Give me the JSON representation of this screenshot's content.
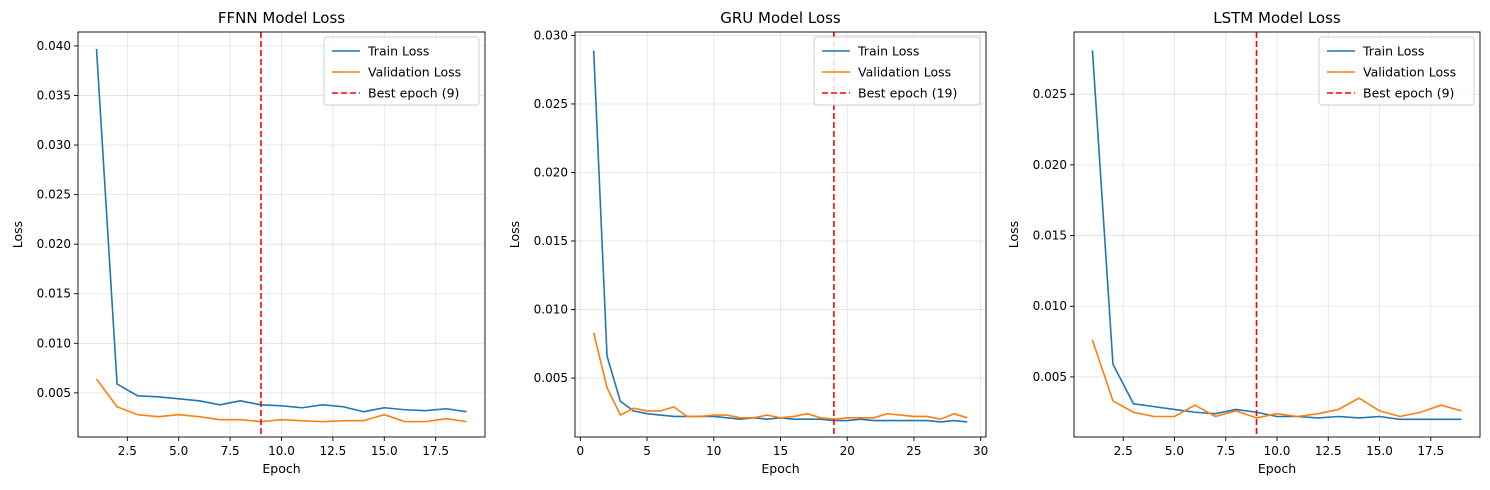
{
  "chart_data": [
    {
      "type": "line",
      "title": "FFNN Model Loss",
      "xlabel": "Epoch",
      "ylabel": "Loss",
      "xlim": [
        0.1,
        19.9
      ],
      "ylim": [
        0.00055,
        0.0414
      ],
      "xticks": [
        2.5,
        5.0,
        7.5,
        10.0,
        12.5,
        15.0,
        17.5
      ],
      "xtick_labels": [
        "2.5",
        "5.0",
        "7.5",
        "10.0",
        "12.5",
        "15.0",
        "17.5"
      ],
      "yticks": [
        0.005,
        0.01,
        0.015,
        0.02,
        0.025,
        0.03,
        0.035,
        0.04
      ],
      "ytick_labels": [
        "0.005",
        "0.010",
        "0.015",
        "0.020",
        "0.025",
        "0.030",
        "0.035",
        "0.040"
      ],
      "grid": true,
      "legend_position": "top-right",
      "x": [
        1,
        2,
        3,
        4,
        5,
        6,
        7,
        8,
        9,
        10,
        11,
        12,
        13,
        14,
        15,
        16,
        17,
        18,
        19
      ],
      "series": [
        {
          "name": "Train Loss",
          "color": "#1f77b4",
          "values": [
            0.0397,
            0.0059,
            0.0047,
            0.0046,
            0.0044,
            0.0042,
            0.0038,
            0.0042,
            0.0038,
            0.0037,
            0.0035,
            0.0038,
            0.0036,
            0.0031,
            0.0035,
            0.0033,
            0.0032,
            0.0034,
            0.0031
          ]
        },
        {
          "name": "Validation Loss",
          "color": "#ff7f0e",
          "values": [
            0.0064,
            0.0036,
            0.0028,
            0.0026,
            0.0028,
            0.0026,
            0.0023,
            0.0023,
            0.0021,
            0.0023,
            0.0022,
            0.0021,
            0.0022,
            0.0022,
            0.0028,
            0.0021,
            0.0021,
            0.0024,
            0.0021
          ]
        }
      ],
      "vline": {
        "x": 9,
        "label": "Best epoch (9)",
        "color": "#ff0000"
      }
    },
    {
      "type": "line",
      "title": "GRU Model Loss",
      "xlabel": "Epoch",
      "ylabel": "Loss",
      "xlim": [
        -0.4,
        30.4
      ],
      "ylim": [
        0.0007,
        0.03025
      ],
      "xticks": [
        0,
        5,
        10,
        15,
        20,
        25,
        30
      ],
      "xtick_labels": [
        "0",
        "5",
        "10",
        "15",
        "20",
        "25",
        "30"
      ],
      "yticks": [
        0.005,
        0.01,
        0.015,
        0.02,
        0.025,
        0.03
      ],
      "ytick_labels": [
        "0.005",
        "0.010",
        "0.015",
        "0.020",
        "0.025",
        "0.030"
      ],
      "grid": true,
      "legend_position": "top-right",
      "x": [
        1,
        2,
        3,
        4,
        5,
        6,
        7,
        8,
        9,
        10,
        11,
        12,
        13,
        14,
        15,
        16,
        17,
        18,
        19,
        20,
        21,
        22,
        23,
        24,
        25,
        26,
        27,
        28,
        29
      ],
      "series": [
        {
          "name": "Train Loss",
          "color": "#1f77b4",
          "values": [
            0.0289,
            0.0066,
            0.0033,
            0.0026,
            0.0024,
            0.0023,
            0.0022,
            0.0022,
            0.0022,
            0.0022,
            0.0021,
            0.002,
            0.0021,
            0.002,
            0.0021,
            0.002,
            0.002,
            0.002,
            0.0019,
            0.0019,
            0.002,
            0.0019,
            0.0019,
            0.0019,
            0.0019,
            0.0019,
            0.0018,
            0.0019,
            0.0018
          ]
        },
        {
          "name": "Validation Loss",
          "color": "#ff7f0e",
          "values": [
            0.0083,
            0.0043,
            0.0023,
            0.0028,
            0.0026,
            0.0026,
            0.0029,
            0.0022,
            0.0022,
            0.0023,
            0.0023,
            0.0021,
            0.0021,
            0.0023,
            0.0021,
            0.0022,
            0.0024,
            0.0021,
            0.002,
            0.0021,
            0.0021,
            0.0021,
            0.0024,
            0.0023,
            0.0022,
            0.0022,
            0.002,
            0.0024,
            0.0021
          ]
        }
      ],
      "vline": {
        "x": 19,
        "label": "Best epoch (19)",
        "color": "#ff0000"
      }
    },
    {
      "type": "line",
      "title": "LSTM Model Loss",
      "xlabel": "Epoch",
      "ylabel": "Loss",
      "xlim": [
        0.1,
        19.9
      ],
      "ylim": [
        0.00075,
        0.0294
      ],
      "xticks": [
        2.5,
        5.0,
        7.5,
        10.0,
        12.5,
        15.0,
        17.5
      ],
      "xtick_labels": [
        "2.5",
        "5.0",
        "7.5",
        "10.0",
        "12.5",
        "15.0",
        "17.5"
      ],
      "yticks": [
        0.005,
        0.01,
        0.015,
        0.02,
        0.025
      ],
      "ytick_labels": [
        "0.005",
        "0.010",
        "0.015",
        "0.020",
        "0.025"
      ],
      "grid": true,
      "legend_position": "top-right",
      "x": [
        1,
        2,
        3,
        4,
        5,
        6,
        7,
        8,
        9,
        10,
        11,
        12,
        13,
        14,
        15,
        16,
        17,
        18,
        19
      ],
      "series": [
        {
          "name": "Train Loss",
          "color": "#1f77b4",
          "values": [
            0.0281,
            0.0059,
            0.0031,
            0.0029,
            0.0027,
            0.0025,
            0.0024,
            0.0027,
            0.0025,
            0.0022,
            0.0022,
            0.0021,
            0.0022,
            0.0021,
            0.0022,
            0.002,
            0.002,
            0.002,
            0.002
          ]
        },
        {
          "name": "Validation Loss",
          "color": "#ff7f0e",
          "values": [
            0.0076,
            0.0033,
            0.0025,
            0.0022,
            0.0022,
            0.003,
            0.0022,
            0.0026,
            0.0021,
            0.0024,
            0.0022,
            0.0024,
            0.0027,
            0.0035,
            0.0026,
            0.0022,
            0.0025,
            0.003,
            0.0026
          ]
        }
      ],
      "vline": {
        "x": 9,
        "label": "Best epoch (9)",
        "color": "#ff0000"
      }
    }
  ]
}
